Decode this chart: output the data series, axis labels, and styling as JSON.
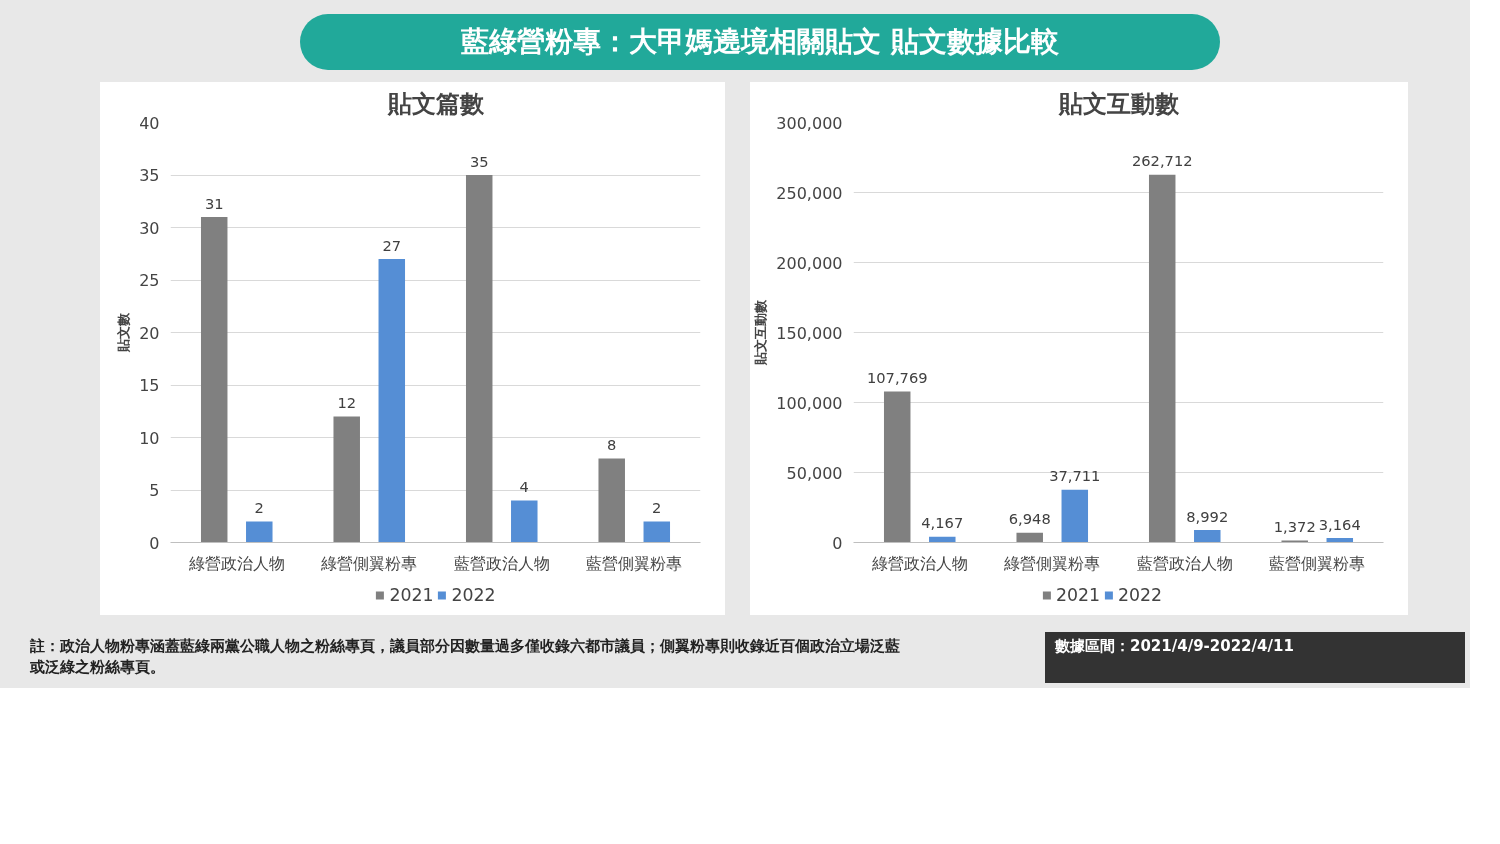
{
  "chart_data": [
    {
      "type": "bar",
      "title": "貼文篇數",
      "ylabel": "貼文數",
      "annotations": [
        "藍綠營粉專：大甲媽遶境相關貼文 貼文數據比較"
      ],
      "categories": [
        "綠營政治人物",
        "綠營側翼粉專",
        "藍營政治人物",
        "藍營側翼粉專"
      ],
      "series": [
        {
          "name": "2021",
          "color": "#808080",
          "values": [
            31,
            12,
            35,
            8
          ]
        },
        {
          "name": "2022",
          "color": "#558ed5",
          "values": [
            2,
            27,
            4,
            2
          ]
        }
      ],
      "ylim": [
        0,
        40
      ],
      "yticks": [
        0,
        5,
        10,
        15,
        20,
        25,
        30,
        35,
        40
      ],
      "grid": "y",
      "legend": "bottom",
      "data_labels": true
    },
    {
      "type": "bar",
      "title": "貼文互動數",
      "ylabel": "貼文互動數",
      "annotations": [
        "註：政治人物粉專涵蓋藍綠兩黨公職人物之粉絲專頁，議員部分因數量過多僅收錄六都市議員；側翼粉專則收錄近百個政治立場泛藍或泛綠之粉絲專頁。",
        "數據區間：2021/4/9-2022/4/11"
      ],
      "categories": [
        "綠營政治人物",
        "綠營側翼粉專",
        "藍營政治人物",
        "藍營側翼粉專"
      ],
      "series": [
        {
          "name": "2021",
          "color": "#808080",
          "values": [
            107769,
            6948,
            262712,
            1372
          ],
          "value_labels": [
            "107,769",
            "6,948",
            "262,712",
            "1,372"
          ]
        },
        {
          "name": "2022",
          "color": "#558ed5",
          "values": [
            4167,
            37711,
            8992,
            3164
          ],
          "value_labels": [
            "4,167",
            "37,711",
            "8,992",
            "3,164"
          ]
        }
      ],
      "ylim": [
        0,
        300000
      ],
      "yticks": [
        0,
        {
          "value": 50000,
          "label": "50,000"
        },
        {
          "value": 100000,
          "label": "100,000"
        },
        {
          "value": 150000,
          "label": "150,000"
        },
        {
          "value": 200000,
          "label": "200,000"
        },
        {
          "value": 250000,
          "label": "250,000"
        },
        {
          "value": 300000,
          "label": "300,000"
        }
      ],
      "grid": "y",
      "legend": "bottom"
    }
  ]
}
